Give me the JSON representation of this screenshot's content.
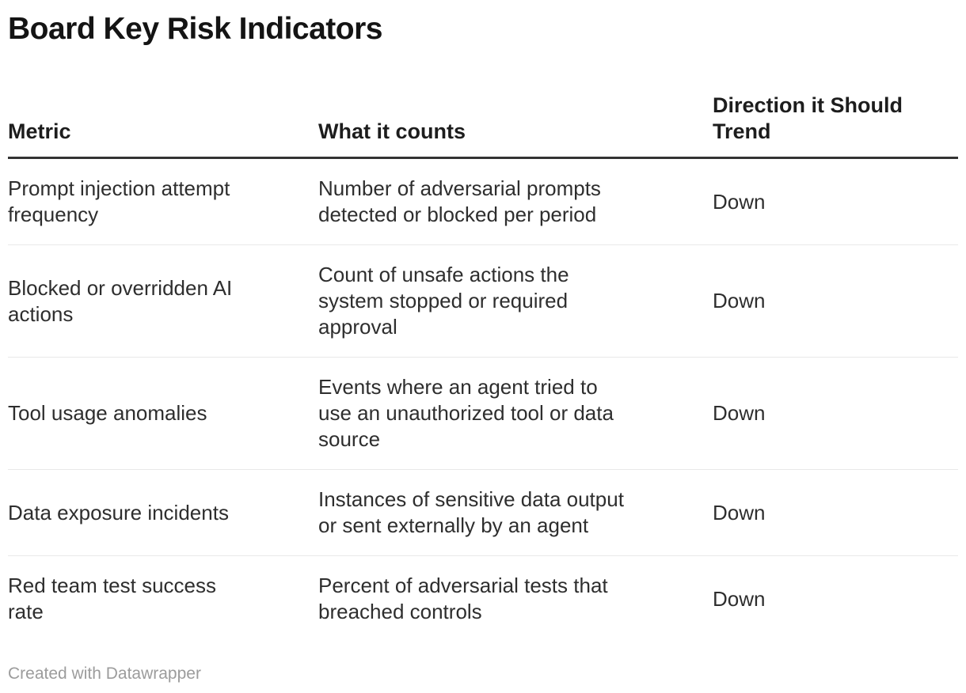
{
  "chart_data": {
    "type": "table",
    "title": "Board Key Risk Indicators",
    "columns": [
      "Metric",
      "What it counts",
      "Direction it Should Trend"
    ],
    "rows": [
      [
        "Prompt injection attempt frequency",
        "Number of adversarial prompts detected or blocked per period",
        "Down"
      ],
      [
        "Blocked or overridden AI actions",
        "Count of unsafe actions the system stopped or required approval",
        "Down"
      ],
      [
        "Tool usage anomalies",
        "Events where an agent tried to use an unauthorized tool or data source",
        "Down"
      ],
      [
        "Data exposure incidents",
        "Instances of sensitive data output or sent externally by an agent",
        "Down"
      ],
      [
        "Red team test success rate",
        "Percent of adversarial tests that breached controls",
        "Down"
      ]
    ],
    "credit": "Created with Datawrapper",
    "layout_hints": {
      "legend": "none",
      "grid": "horizontal-row-separators"
    }
  },
  "colors": {
    "background": "#ffffff",
    "title_text": "#141414",
    "header_text": "#1d1d1d",
    "body_text": "#2e2e2e",
    "header_border": "#333333",
    "row_border": "#e9e9e9",
    "credit_text": "#9c9c9c"
  }
}
